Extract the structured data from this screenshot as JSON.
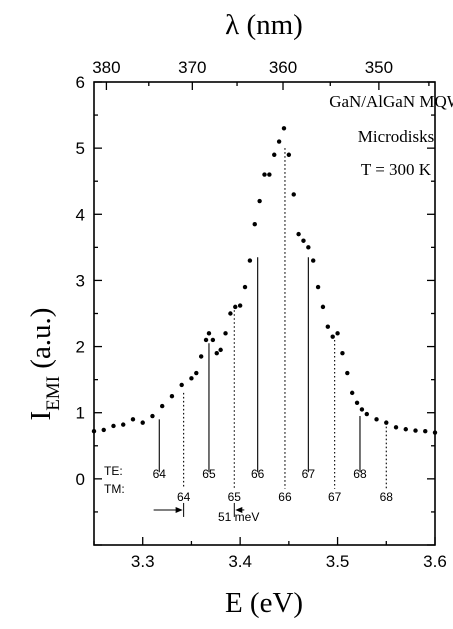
{
  "chart_data": {
    "type": "scatter",
    "title": "",
    "xlabel": "E (eV)",
    "ylabel_main": "I",
    "ylabel_sub": "EMI",
    "ylabel_unit": " (a.u.)",
    "top_axis_label": "λ (nm)",
    "xlim": [
      3.25,
      3.6
    ],
    "ylim": [
      -1,
      6
    ],
    "x_ticks": [
      "3.3",
      "3.4",
      "3.5",
      "3.6"
    ],
    "y_ticks": [
      "0",
      "1",
      "2",
      "3",
      "4",
      "5",
      "6"
    ],
    "top_ticks": [
      {
        "label": "380",
        "value": 380
      },
      {
        "label": "370",
        "value": 370
      },
      {
        "label": "360",
        "value": 360
      },
      {
        "label": "350",
        "value": 350
      }
    ],
    "annotations": [
      "GaN/AlGaN MQW",
      "Microdisks",
      "T = 300 K"
    ],
    "mode_rows": {
      "te_label": "TE:",
      "tm_label": "TM:"
    },
    "te_modes": [
      {
        "label": "64",
        "x": 3.317,
        "top": 0.9
      },
      {
        "label": "65",
        "x": 3.368,
        "top": 2.05
      },
      {
        "label": "66",
        "x": 3.418,
        "top": 3.35
      },
      {
        "label": "67",
        "x": 3.47,
        "top": 3.35
      },
      {
        "label": "68",
        "x": 3.523,
        "top": 0.95
      }
    ],
    "tm_modes": [
      {
        "label": "64",
        "x": 3.342,
        "top": 1.3
      },
      {
        "label": "65",
        "x": 3.394,
        "top": 2.55
      },
      {
        "label": "66",
        "x": 3.446,
        "top": 5.0
      },
      {
        "label": "67",
        "x": 3.497,
        "top": 2.1
      },
      {
        "label": "68",
        "x": 3.55,
        "top": 0.85
      }
    ],
    "spacing_label": "51 meV",
    "spacing_arrow": {
      "x_left": 3.342,
      "x_right": 3.394,
      "y": -0.47
    },
    "series": [
      {
        "points": [
          [
            3.25,
            0.72
          ],
          [
            3.26,
            0.74
          ],
          [
            3.27,
            0.8
          ],
          [
            3.28,
            0.82
          ],
          [
            3.29,
            0.9
          ],
          [
            3.3,
            0.85
          ],
          [
            3.31,
            0.95
          ],
          [
            3.32,
            1.1
          ],
          [
            3.33,
            1.25
          ],
          [
            3.34,
            1.42
          ],
          [
            3.35,
            1.52
          ],
          [
            3.355,
            1.6
          ],
          [
            3.36,
            1.85
          ],
          [
            3.365,
            2.1
          ],
          [
            3.368,
            2.2
          ],
          [
            3.372,
            2.1
          ],
          [
            3.376,
            1.9
          ],
          [
            3.38,
            1.95
          ],
          [
            3.385,
            2.2
          ],
          [
            3.39,
            2.5
          ],
          [
            3.395,
            2.6
          ],
          [
            3.4,
            2.62
          ],
          [
            3.405,
            2.9
          ],
          [
            3.41,
            3.3
          ],
          [
            3.415,
            3.85
          ],
          [
            3.42,
            4.2
          ],
          [
            3.425,
            4.6
          ],
          [
            3.43,
            4.6
          ],
          [
            3.435,
            4.9
          ],
          [
            3.44,
            5.1
          ],
          [
            3.445,
            5.3
          ],
          [
            3.45,
            4.9
          ],
          [
            3.455,
            4.3
          ],
          [
            3.46,
            3.7
          ],
          [
            3.465,
            3.6
          ],
          [
            3.47,
            3.5
          ],
          [
            3.475,
            3.3
          ],
          [
            3.48,
            2.9
          ],
          [
            3.485,
            2.6
          ],
          [
            3.49,
            2.3
          ],
          [
            3.495,
            2.15
          ],
          [
            3.5,
            2.2
          ],
          [
            3.505,
            1.9
          ],
          [
            3.51,
            1.6
          ],
          [
            3.515,
            1.3
          ],
          [
            3.52,
            1.15
          ],
          [
            3.525,
            1.05
          ],
          [
            3.53,
            0.98
          ],
          [
            3.54,
            0.9
          ],
          [
            3.55,
            0.85
          ],
          [
            3.56,
            0.78
          ],
          [
            3.57,
            0.75
          ],
          [
            3.58,
            0.73
          ],
          [
            3.59,
            0.72
          ],
          [
            3.6,
            0.7
          ]
        ]
      }
    ]
  }
}
